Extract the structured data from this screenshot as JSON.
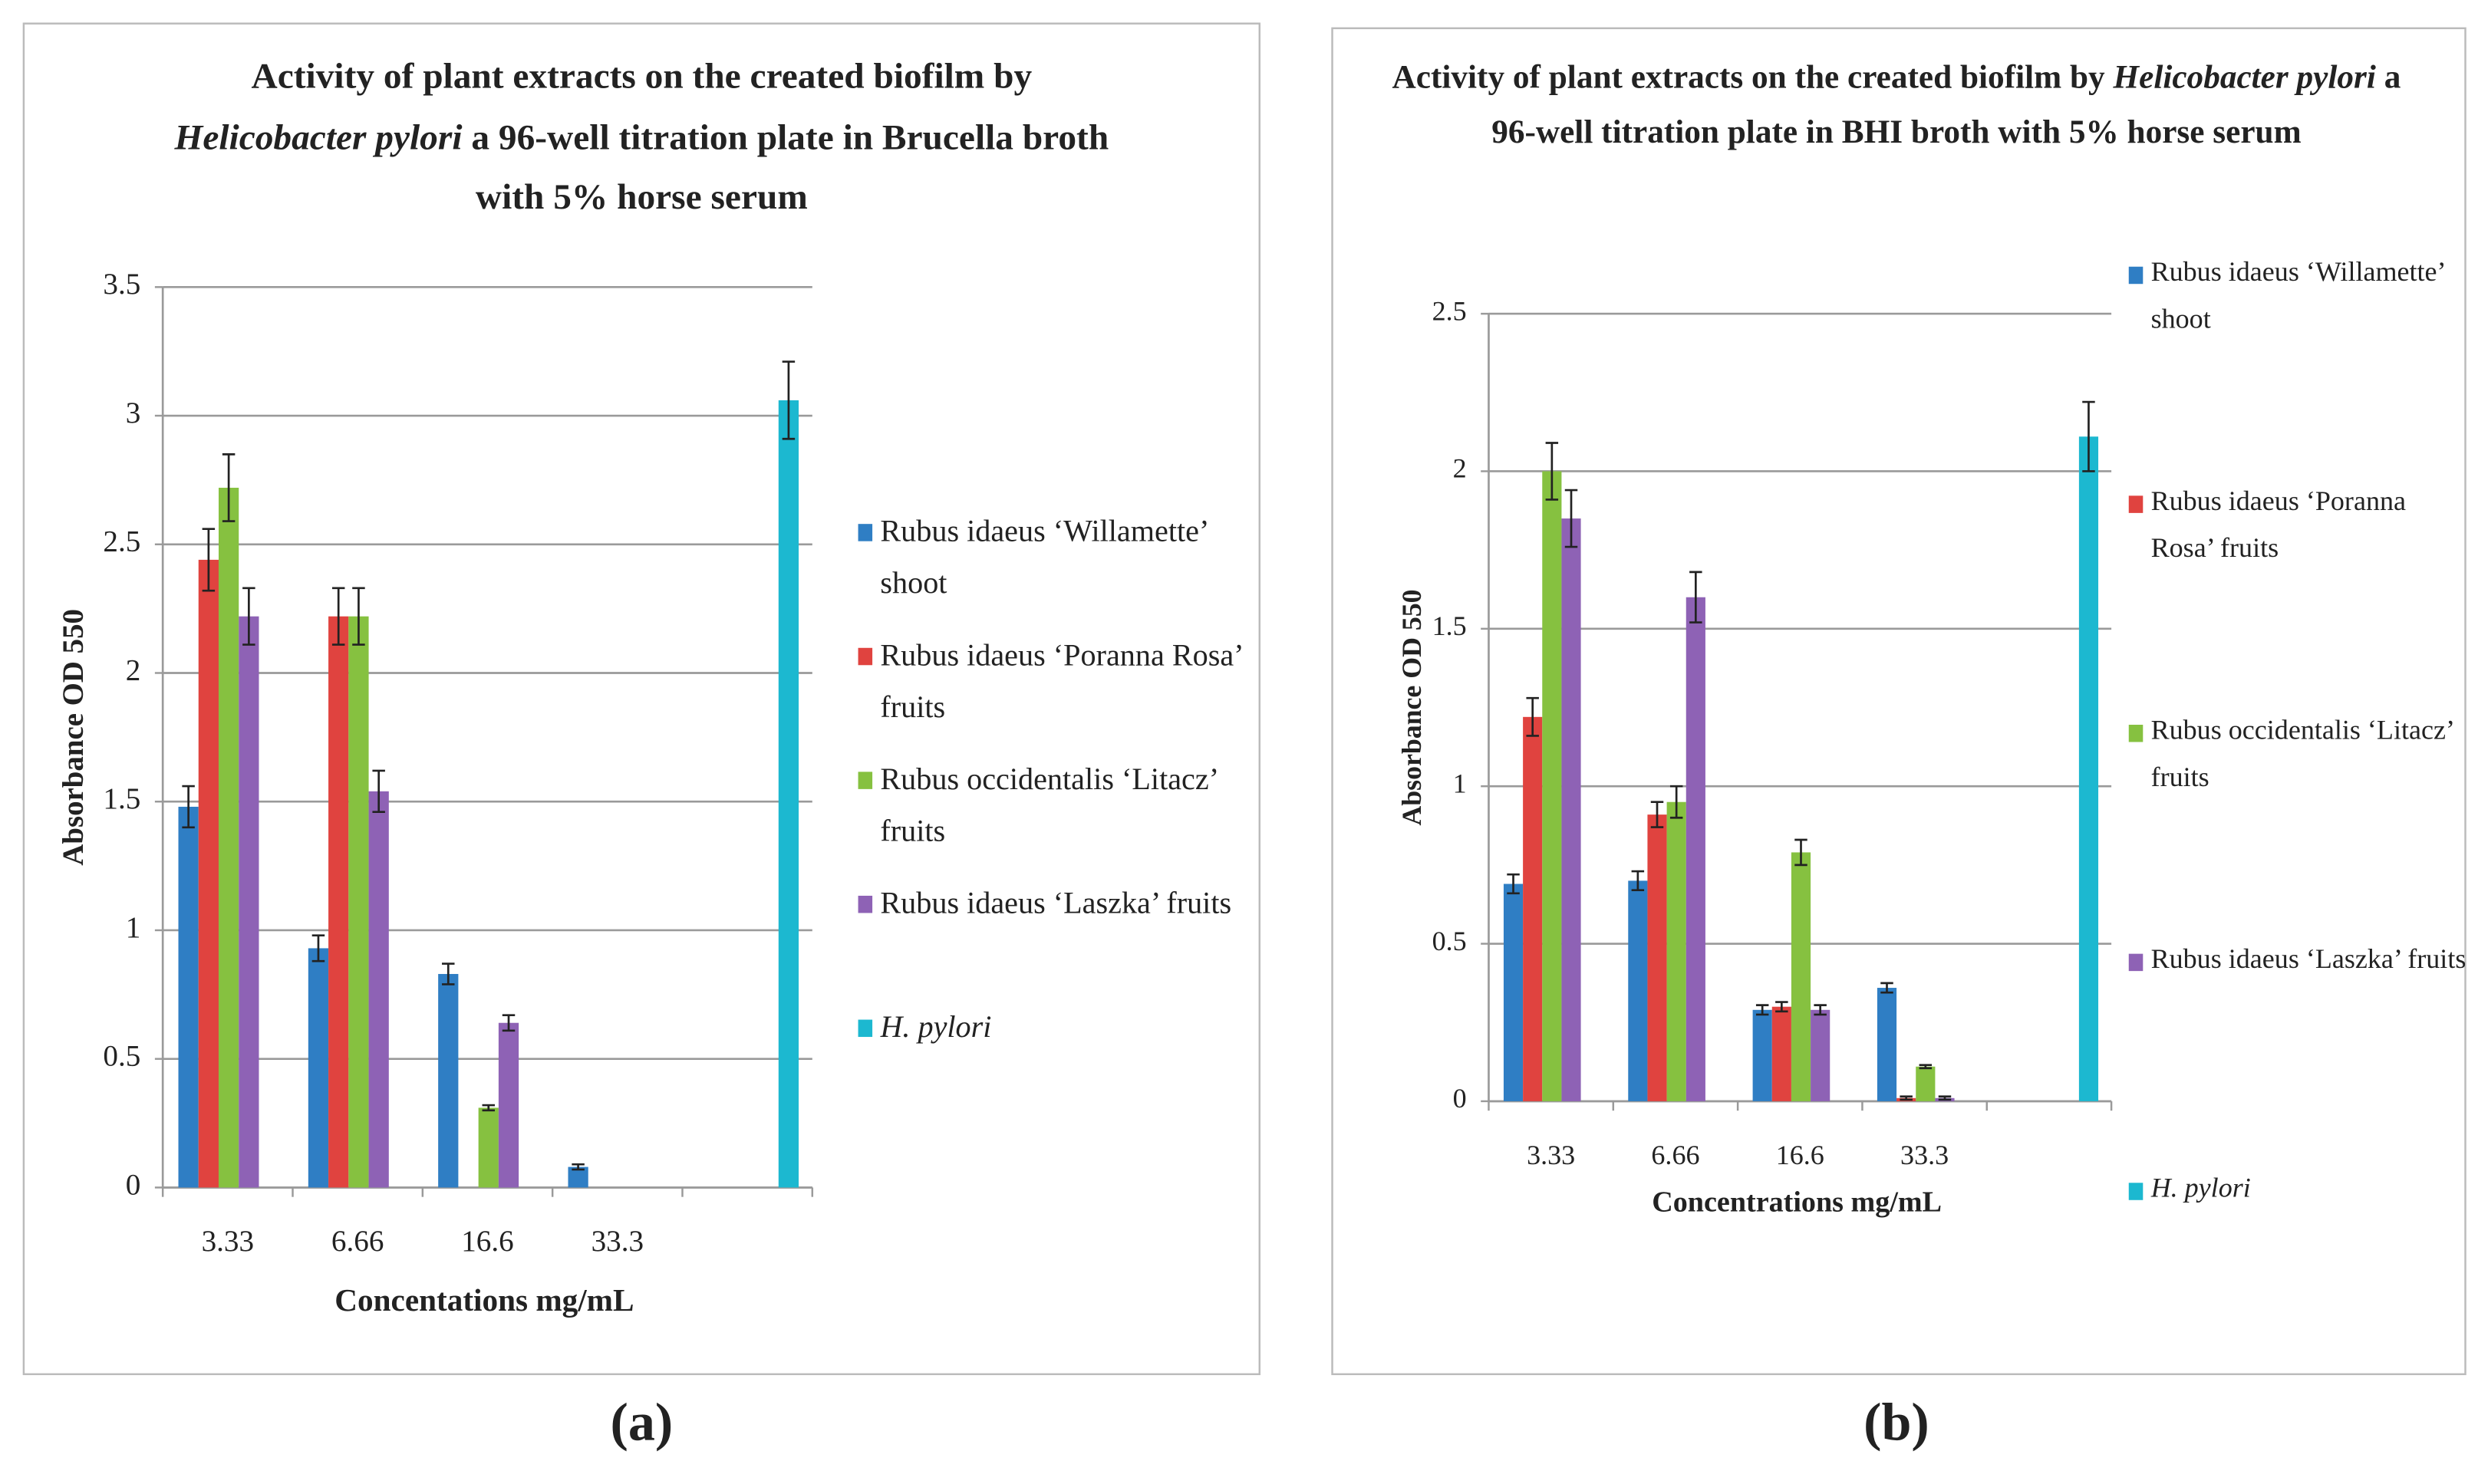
{
  "chart_data": [
    {
      "type": "bar",
      "title": [
        "Activity of plant extracts on the created biofilm by ",
        "Helicobacter pylori",
        "  a 96-well titration plate in Brucella broth with 5% horse serum"
      ],
      "title_italic": [
        1
      ],
      "panel_label": "(a)",
      "x_label": "Concentations mg/mL",
      "y_label": "Absorbance OD 550",
      "categories": [
        "3.33",
        "6.66",
        "16.6",
        "33.3",
        null
      ],
      "ylim": [
        0,
        3.5
      ],
      "yticks": [
        0,
        0.5,
        1,
        1.5,
        2,
        2.5,
        3,
        3.5
      ],
      "grid": true,
      "legend": "right",
      "series": [
        {
          "name": "Rubus idaeus ‘Willamette’ shoot",
          "color": "#2f7ec4",
          "values": [
            1.48,
            0.93,
            0.83,
            0.08,
            null
          ],
          "errors": [
            0.08,
            0.05,
            0.04,
            0.01,
            null
          ]
        },
        {
          "name": "Rubus idaeus ‘Poranna Rosa’ fruits",
          "color": "#e0433f",
          "values": [
            2.44,
            2.22,
            null,
            null,
            null
          ],
          "errors": [
            0.12,
            0.11,
            null,
            null,
            null
          ]
        },
        {
          "name": "Rubus occidentalis ‘Litacz’ fruits",
          "color": "#86c140",
          "values": [
            2.72,
            2.22,
            0.31,
            null,
            null
          ],
          "errors": [
            0.13,
            0.11,
            0.01,
            null,
            null
          ]
        },
        {
          "name": "Rubus idaeus ‘Laszka’ fruits",
          "color": "#8e62b5",
          "values": [
            2.22,
            1.54,
            0.64,
            null,
            null
          ],
          "errors": [
            0.11,
            0.08,
            0.03,
            null,
            null
          ]
        },
        {
          "name": "H. pylori",
          "italic": true,
          "color": "#1cb8d0",
          "values": [
            null,
            null,
            null,
            null,
            3.06
          ],
          "errors": [
            null,
            null,
            null,
            null,
            0.15
          ]
        }
      ]
    },
    {
      "type": "bar",
      "title": [
        "Activity of plant extracts on the created biofilm by ",
        "Helicobacter pylori",
        " a 96-well titration plate in BHI  broth with 5% horse serum"
      ],
      "title_italic": [
        1
      ],
      "panel_label": "(b)",
      "x_label": "Concentrations mg/mL",
      "y_label": "Absorbance OD 550",
      "categories": [
        "3.33",
        "6.66",
        "16.6",
        "33.3",
        null
      ],
      "ylim": [
        0,
        2.5
      ],
      "yticks": [
        0,
        0.5,
        1,
        1.5,
        2,
        2.5
      ],
      "grid": true,
      "legend": "right",
      "series": [
        {
          "name": "Rubus idaeus ‘Willamette’ shoot",
          "color": "#2f7ec4",
          "values": [
            0.69,
            0.7,
            0.29,
            0.36,
            null
          ],
          "errors": [
            0.03,
            0.03,
            0.015,
            0.015,
            null
          ]
        },
        {
          "name": "Rubus idaeus ‘Poranna Rosa’  fruits",
          "color": "#e0433f",
          "values": [
            1.22,
            0.91,
            0.3,
            0.01,
            null
          ],
          "errors": [
            0.06,
            0.04,
            0.015,
            0.005,
            null
          ]
        },
        {
          "name": "Rubus occidentalis ‘Litacz’ fruits",
          "color": "#86c140",
          "values": [
            2.0,
            0.95,
            0.79,
            0.11,
            null
          ],
          "errors": [
            0.09,
            0.05,
            0.04,
            0.005,
            null
          ]
        },
        {
          "name": "Rubus idaeus ‘Laszka’ fruits",
          "color": "#8e62b5",
          "values": [
            1.85,
            1.6,
            0.29,
            0.01,
            null
          ],
          "errors": [
            0.09,
            0.08,
            0.015,
            0.005,
            null
          ]
        },
        {
          "name": "H. pylori",
          "italic": true,
          "color": "#1cb8d0",
          "values": [
            null,
            null,
            null,
            null,
            2.11
          ],
          "errors": [
            null,
            null,
            null,
            null,
            0.11
          ]
        }
      ]
    }
  ]
}
